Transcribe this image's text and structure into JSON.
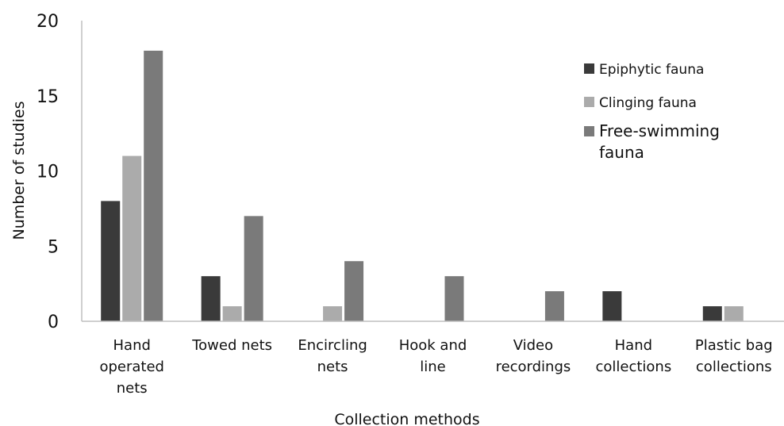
{
  "chart_data": {
    "type": "bar",
    "title": "",
    "xlabel": "Collection methods",
    "ylabel": "Number of studies",
    "ylim": [
      0,
      20
    ],
    "yticks": [
      0,
      5,
      10,
      15,
      20
    ],
    "grid": false,
    "legend_position": "top-right",
    "categories": [
      [
        "Hand",
        "operated",
        "nets"
      ],
      [
        "Towed nets"
      ],
      [
        "Encircling",
        "nets"
      ],
      [
        "Hook and",
        "line"
      ],
      [
        "Video",
        "recordings"
      ],
      [
        "Hand",
        "collections"
      ],
      [
        "Plastic bag",
        "collections"
      ]
    ],
    "series": [
      {
        "name": "Epiphytic fauna",
        "color": "#3a3a3a",
        "values": [
          8,
          3,
          0,
          0,
          0,
          2,
          1
        ]
      },
      {
        "name": "Clinging fauna",
        "color": "#ababab",
        "values": [
          11,
          1,
          1,
          0,
          0,
          0,
          1
        ]
      },
      {
        "name": [
          "Free-swimming",
          "fauna"
        ],
        "color": "#7a7a7a",
        "values": [
          18,
          7,
          4,
          3,
          2,
          0,
          0
        ]
      }
    ]
  }
}
